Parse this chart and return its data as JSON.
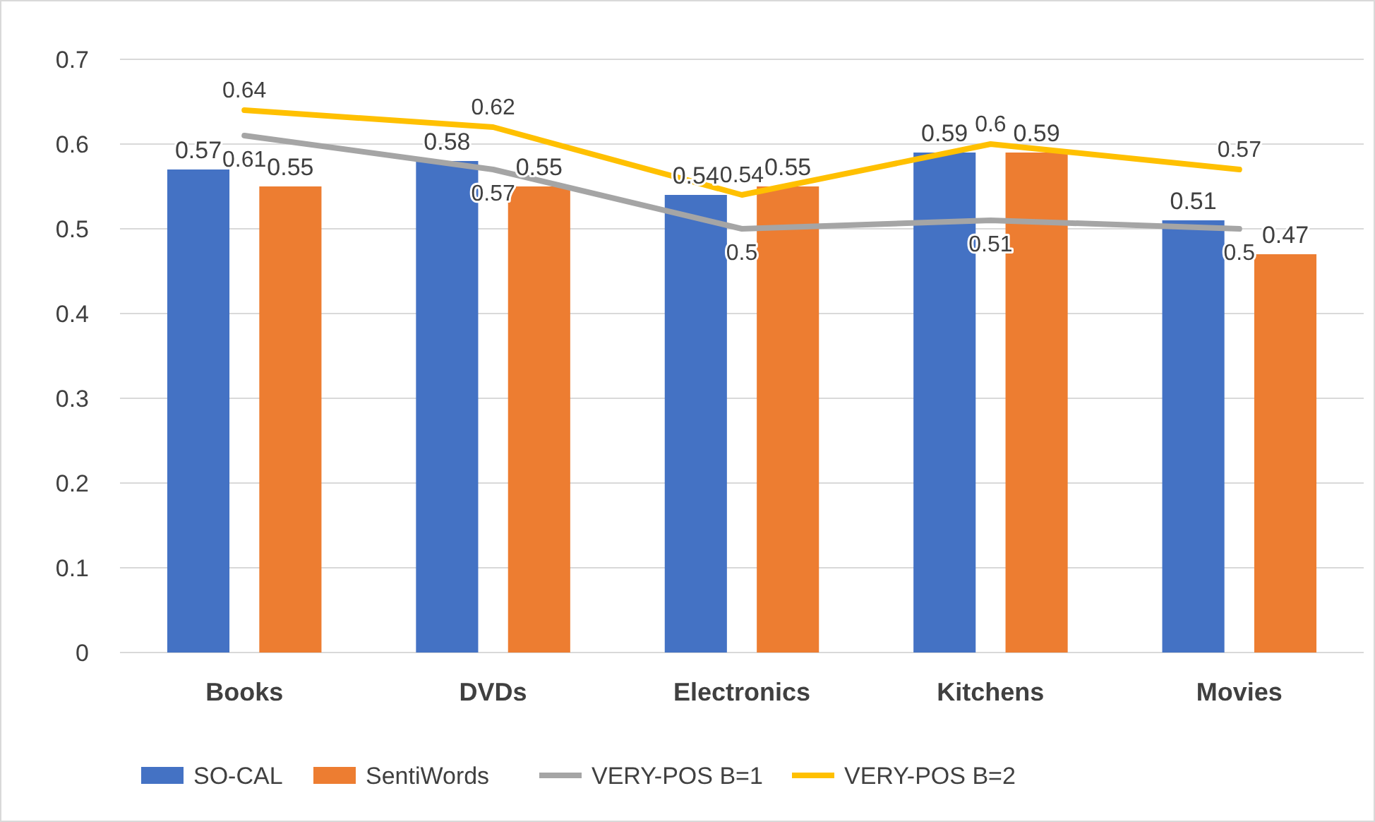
{
  "chart_data": {
    "type": "bar",
    "categories": [
      "Books",
      "DVDs",
      "Electronics",
      "Kitchens",
      "Movies"
    ],
    "series": [
      {
        "name": "SO-CAL",
        "color": "#4472c4",
        "values": [
          0.57,
          0.58,
          0.54,
          0.59,
          0.51
        ]
      },
      {
        "name": "SentiWords",
        "color": "#ed7d31",
        "values": [
          0.55,
          0.55,
          0.55,
          0.59,
          0.47
        ]
      },
      {
        "name": "VERY-POS B=1",
        "type": "line",
        "color": "#a5a5a5",
        "values": [
          0.61,
          0.57,
          0.5,
          0.51,
          0.5
        ]
      },
      {
        "name": "VERY-POS B=2",
        "type": "line",
        "color": "#ffc000",
        "values": [
          0.64,
          0.62,
          0.54,
          0.6,
          0.57
        ]
      }
    ],
    "ylim": [
      0,
      0.7
    ],
    "yticks": [
      0,
      0.1,
      0.2,
      0.3,
      0.4,
      0.5,
      0.6,
      0.7
    ],
    "grid": "y",
    "legend": "bottom",
    "data_labels": true,
    "marker": "none"
  }
}
